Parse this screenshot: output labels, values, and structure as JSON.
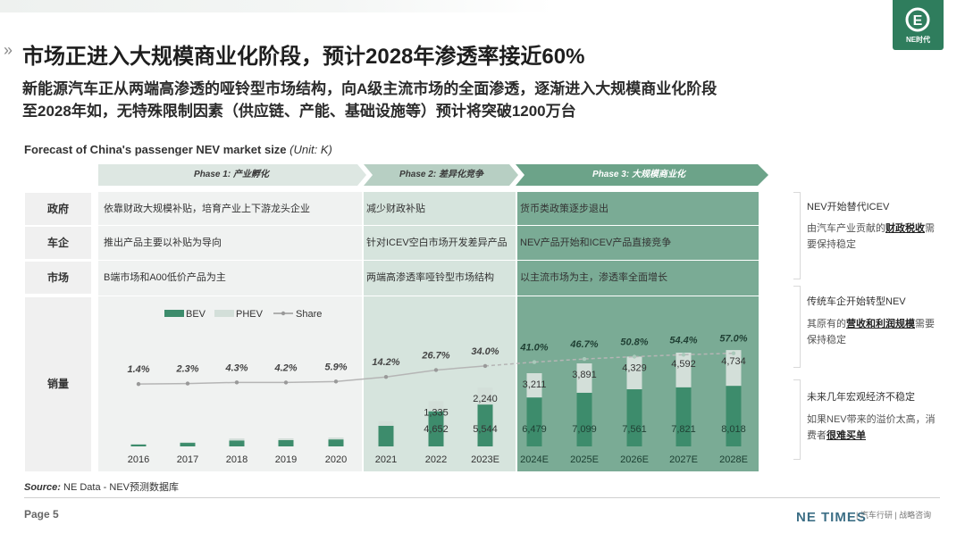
{
  "header": {
    "title": "市场正进入大规模商业化阶段，预计2028年渗透率接近60%",
    "subtitle_line1": "新能源汽车正从两端高渗透的哑铃型市场结构，向A级主流市场的全面渗透，逐渐进入大规模商业化阶段",
    "subtitle_line2": "至2028年如，无特殊限制因素（供应链、产能、基础设施等）预计将突破1200万台",
    "logo_text": "NE时代",
    "logo_mark": "E"
  },
  "chart_title": {
    "main": "Forecast of China's passenger NEV market size",
    "unit": "(Unit: K)"
  },
  "phases": [
    {
      "label": "Phase 1: 产业孵化"
    },
    {
      "label": "Phase 2: 差异化竞争"
    },
    {
      "label": "Phase 3: 大规模商业化"
    }
  ],
  "row_labels": {
    "government": "政府",
    "automakers": "车企",
    "market": "市场",
    "sales": "销量"
  },
  "cells": {
    "government": [
      "依靠财政大规模补贴，培育产业上下游龙头企业",
      "减少财政补贴",
      "货币类政策逐步退出"
    ],
    "automakers": [
      "推出产品主要以补贴为导向",
      "针对ICEV空白市场开发差异产品",
      "NEV产品开始和ICEV产品直接竞争"
    ],
    "market": [
      "B端市场和A00低价产品为主",
      "两端高渗透率哑铃型市场结构",
      "以主流市场为主，渗透率全面增长"
    ]
  },
  "chart_data": {
    "type": "bar",
    "stacked": true,
    "categories": [
      "2016",
      "2017",
      "2018",
      "2019",
      "2020",
      "2021",
      "2022",
      "2023E",
      "2024E",
      "2025E",
      "2026E",
      "2027E",
      "2028E"
    ],
    "series": [
      {
        "name": "BEV",
        "color": "#3d8c6c",
        "values": [
          257,
          468,
          788,
          832,
          929,
          2734,
          4652,
          5544,
          6479,
          7099,
          7561,
          7821,
          8018
        ]
      },
      {
        "name": "PHEV",
        "color": "#d3dfd9",
        "values": [
          79,
          111,
          265,
          232,
          250,
          603,
          1335,
          2240,
          3211,
          3891,
          4329,
          4592,
          4734
        ]
      }
    ],
    "line_series": {
      "name": "Share",
      "color": "#b5b5b5",
      "values": [
        1.4,
        2.3,
        4.3,
        4.2,
        5.9,
        14.2,
        26.7,
        34.0,
        41.0,
        46.7,
        50.8,
        54.4,
        57.0
      ],
      "labels": [
        "1.4%",
        "2.3%",
        "4.3%",
        "4.2%",
        "5.9%",
        "14.2%",
        "26.7%",
        "34.0%",
        "41.0%",
        "46.7%",
        "50.8%",
        "54.4%",
        "57.0%"
      ]
    },
    "bar_value_labels": {
      "bev": [
        "",
        "",
        "",
        "",
        "",
        "",
        "4,652",
        "5,544",
        "6,479",
        "7,099",
        "7,561",
        "7,821",
        "8,018"
      ],
      "phev": [
        "",
        "",
        "",
        "",
        "",
        "",
        "1,335",
        "2,240",
        "3,211",
        "3,891",
        "4,329",
        "4,592",
        "4,734"
      ]
    },
    "legend": [
      "BEV",
      "PHEV",
      "Share"
    ],
    "legend_position": "top-left"
  },
  "side_notes": [
    {
      "head": "NEV开始替代ICEV",
      "body1": "由汽车产业贡献的",
      "bold": "财政税收",
      "body2": "需",
      "body3": "要保持稳定"
    },
    {
      "head": "传统车企开始转型NEV",
      "body1": "其原有的",
      "bold": "营收和利润规模",
      "body2": "需要",
      "body3": "保持稳定"
    },
    {
      "head": "未来几年宏观经济不稳定",
      "body1": "如果NEV带来的溢价太高，消",
      "bold": "很难买单",
      "body2": "",
      "body3": "费者"
    }
  ],
  "footer": {
    "source_label": "Source:",
    "source_text": " NE Data - NEV预测数据库",
    "page": "Page 5",
    "brand": "NE TIMES",
    "brand_sub": "| 汽车行研 | 战略咨询"
  },
  "colors": {
    "phase1": "#f0f2f1",
    "phase2": "#d6e4dd",
    "phase3": "#7aab95",
    "phase1_head": "#dde7e2",
    "phase2_head": "#b7cfc3",
    "phase3_head": "#6ca389"
  }
}
